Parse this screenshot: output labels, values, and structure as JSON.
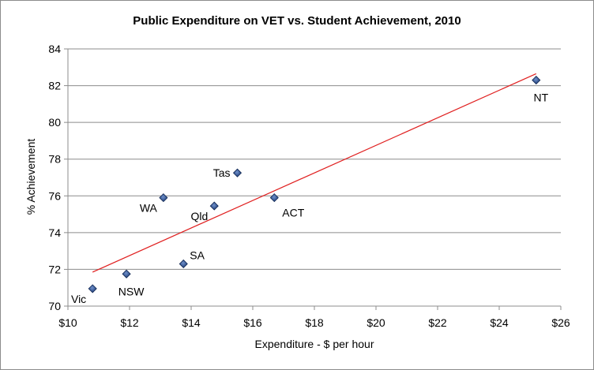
{
  "chart_data": {
    "type": "scatter",
    "title": "Public Expenditure on VET vs. Student Achievement, 2010",
    "xlabel": "Expenditure  - $ per hour",
    "ylabel": "% Achievement",
    "xlim": [
      10,
      26
    ],
    "ylim": [
      70,
      84
    ],
    "x_ticks": [
      10,
      12,
      14,
      16,
      18,
      20,
      22,
      24,
      26
    ],
    "x_tick_labels": [
      "$10",
      "$12",
      "$14",
      "$16",
      "$18",
      "$20",
      "$22",
      "$24",
      "$26"
    ],
    "y_ticks": [
      70,
      72,
      74,
      76,
      78,
      80,
      82,
      84
    ],
    "y_tick_labels": [
      "70",
      "72",
      "74",
      "76",
      "78",
      "80",
      "82",
      "84"
    ],
    "grid": true,
    "points": [
      {
        "label": "Vic",
        "x": 10.8,
        "y": 70.95,
        "label_pos": "below-left"
      },
      {
        "label": "NSW",
        "x": 11.9,
        "y": 71.75,
        "label_pos": "below"
      },
      {
        "label": "WA",
        "x": 13.1,
        "y": 75.9,
        "label_pos": "below-left"
      },
      {
        "label": "SA",
        "x": 13.75,
        "y": 72.3,
        "label_pos": "above-right"
      },
      {
        "label": "Qld",
        "x": 14.75,
        "y": 75.45,
        "label_pos": "below-left"
      },
      {
        "label": "Tas",
        "x": 15.5,
        "y": 77.25,
        "label_pos": "left"
      },
      {
        "label": "ACT",
        "x": 16.7,
        "y": 75.9,
        "label_pos": "below-right"
      },
      {
        "label": "NT",
        "x": 25.2,
        "y": 82.3,
        "label_pos": "below"
      }
    ],
    "trendline": {
      "x": [
        10.8,
        25.2
      ],
      "y": [
        71.85,
        82.65
      ],
      "color": "#e02020"
    },
    "marker_color": "#1f3f7a",
    "marker_highlight": "#6f8fc9"
  }
}
